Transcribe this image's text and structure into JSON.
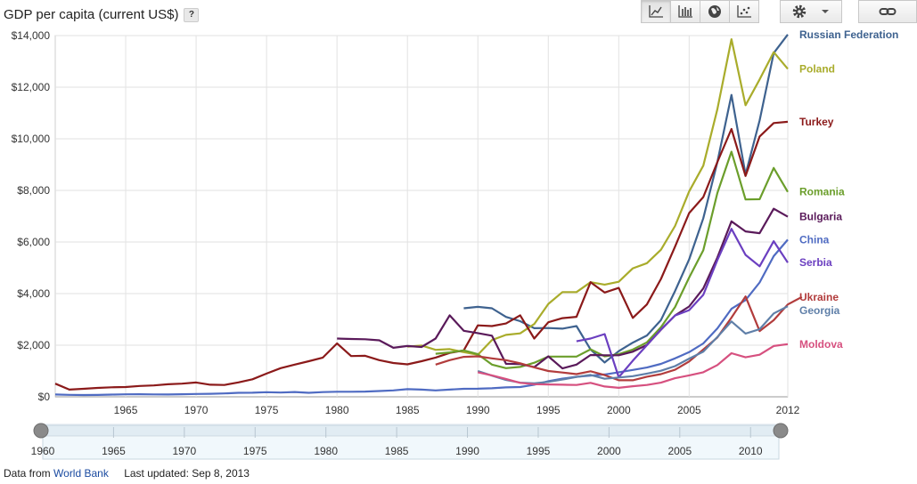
{
  "header": {
    "title": "GDP per capita (current US$)",
    "help_label": "?"
  },
  "toolbar": {
    "view_buttons": [
      "line-chart",
      "bar-chart",
      "map",
      "scatter"
    ],
    "settings_icon": "gear-icon",
    "link_icon": "link-icon"
  },
  "footer": {
    "source_prefix": "Data from",
    "source_link": "World Bank",
    "updated": "Last updated: Sep 8, 2013"
  },
  "chart_data": {
    "type": "line",
    "xlim": [
      1960,
      2012
    ],
    "ylim": [
      0,
      14000
    ],
    "x_ticks": [
      "1965",
      "1970",
      "1975",
      "1980",
      "1985",
      "1990",
      "1995",
      "2000",
      "2005",
      "2012"
    ],
    "y_ticks": [
      "$0",
      "$2,000",
      "$4,000",
      "$6,000",
      "$8,000",
      "$10,000",
      "$12,000",
      "$14,000"
    ],
    "y_tick_values": [
      0,
      2000,
      4000,
      6000,
      8000,
      10000,
      12000,
      14000
    ],
    "grid": true,
    "legend": "right, inline at series ends",
    "series": [
      {
        "name": "Russian Federation",
        "color": "#3e628f",
        "start": 1989,
        "values": [
          3430,
          3485,
          3430,
          3095,
          2930,
          2660,
          2665,
          2640,
          2740,
          1835,
          1330,
          1770,
          2100,
          2375,
          2975,
          4100,
          5325,
          6920,
          9100,
          11700,
          8615,
          10710,
          13320,
          14040
        ]
      },
      {
        "name": "Poland",
        "color": "#a9ac2b",
        "start": 1985,
        "values": [
          1940,
          1990,
          1820,
          1850,
          1730,
          1630,
          2200,
          2400,
          2460,
          2820,
          3600,
          4060,
          4060,
          4440,
          4350,
          4460,
          4980,
          5180,
          5700,
          6620,
          7960,
          8960,
          11150,
          13860,
          11300,
          12300,
          13360,
          12710
        ]
      },
      {
        "name": "Turkey",
        "color": "#8b1a1a",
        "start": 1960,
        "values": [
          510,
          280,
          310,
          345,
          370,
          380,
          420,
          440,
          485,
          510,
          555,
          470,
          460,
          560,
          680,
          900,
          1110,
          1250,
          1380,
          1520,
          2070,
          1580,
          1590,
          1420,
          1310,
          1260,
          1380,
          1520,
          1700,
          1800,
          2770,
          2740,
          2840,
          3160,
          2260,
          2890,
          3050,
          3100,
          4440,
          4040,
          4220,
          3060,
          3580,
          4570,
          5820,
          7120,
          7740,
          9100,
          10380,
          8560,
          10090,
          10610,
          10660
        ]
      },
      {
        "name": "Romania",
        "color": "#6b9e2b",
        "start": 1987,
        "values": [
          1670,
          1720,
          1800,
          1650,
          1250,
          1110,
          1160,
          1320,
          1560,
          1560,
          1560,
          1840,
          1570,
          1650,
          1830,
          2110,
          2700,
          3480,
          4620,
          5680,
          7900,
          9500,
          7650,
          7660,
          8870,
          7940
        ]
      },
      {
        "name": "Bulgaria",
        "color": "#5a1a5a",
        "start": 1980,
        "values": [
          2260,
          2240,
          2230,
          2190,
          1900,
          1970,
          1930,
          2260,
          3160,
          2560,
          2470,
          2370,
          1280,
          1270,
          1150,
          1570,
          1100,
          1250,
          1620,
          1610,
          1610,
          1750,
          2010,
          2600,
          3150,
          3500,
          4200,
          5400,
          6800,
          6410,
          6340,
          7290,
          6980
        ]
      },
      {
        "name": "China",
        "color": "#4f6bc2",
        "start": 1960,
        "values": [
          90,
          75,
          70,
          73,
          85,
          98,
          100,
          92,
          90,
          100,
          112,
          118,
          130,
          155,
          160,
          178,
          165,
          185,
          155,
          183,
          195,
          197,
          203,
          225,
          250,
          295,
          280,
          250,
          280,
          310,
          315,
          330,
          365,
          380,
          470,
          605,
          705,
          775,
          820,
          865,
          950,
          1040,
          1135,
          1275,
          1490,
          1730,
          2070,
          2650,
          3410,
          3750,
          4430,
          5450,
          6090
        ]
      },
      {
        "name": "Serbia",
        "color": "#6b3fc0",
        "start": 1997,
        "values": [
          2150,
          2260,
          2430,
          760,
          1400,
          2000,
          2610,
          3150,
          3360,
          3950,
          5300,
          6510,
          5500,
          5060,
          6030,
          5200
        ]
      },
      {
        "name": "Ukraine",
        "color": "#b23c3c",
        "start": 1987,
        "values": [
          1250,
          1420,
          1550,
          1570,
          1490,
          1420,
          1300,
          1140,
          1000,
          940,
          880,
          990,
          840,
          640,
          640,
          780,
          880,
          1050,
          1370,
          1830,
          2300,
          3070,
          3890,
          2550,
          2970,
          3580,
          3870
        ]
      },
      {
        "name": "Georgia",
        "color": "#5f7fa8",
        "start": 1990,
        "values": [
          1000,
          820,
          650,
          550,
          520,
          580,
          670,
          770,
          850,
          700,
          750,
          800,
          900,
          1010,
          1190,
          1480,
          1750,
          2320,
          2920,
          2450,
          2620,
          3230,
          3510
        ]
      },
      {
        "name": "Moldova",
        "color": "#d6507f",
        "start": 1990,
        "values": [
          950,
          830,
          690,
          540,
          490,
          480,
          470,
          460,
          540,
          400,
          350,
          410,
          460,
          550,
          720,
          830,
          950,
          1230,
          1690,
          1530,
          1630,
          1970,
          2040
        ]
      }
    ]
  },
  "range_slider": {
    "ticks": [
      "1960",
      "1965",
      "1970",
      "1975",
      "1980",
      "1985",
      "1990",
      "1995",
      "2000",
      "2005",
      "2010"
    ],
    "from": 1960,
    "to": 2012
  }
}
